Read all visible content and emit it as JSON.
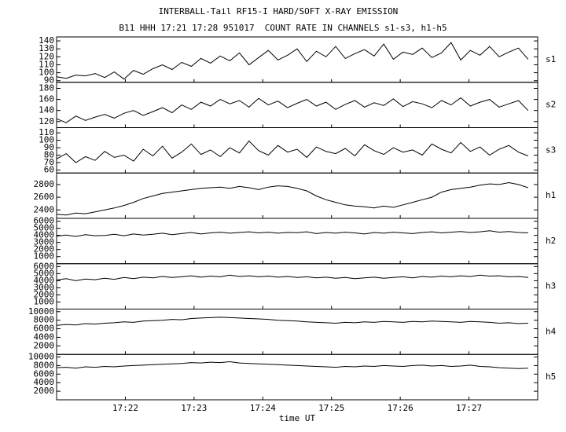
{
  "chart_data": {
    "type": "line",
    "title": "INTERBALL-Tail RF15-I HARD/SOFT X-RAY EMISSION",
    "subtitle": "B11 HHH 17:21 17:28 951017  COUNT RATE IN CHANNELS s1-s3, h1-h5",
    "xlabel": "time UT",
    "xlim": [
      1041,
      1048
    ],
    "xticks": [
      {
        "value": 1042,
        "label": "17:22"
      },
      {
        "value": 1043,
        "label": "17:23"
      },
      {
        "value": 1044,
        "label": "17:24"
      },
      {
        "value": 1045,
        "label": "17:25"
      },
      {
        "value": 1046,
        "label": "17:26"
      },
      {
        "value": 1047,
        "label": "17:27"
      }
    ],
    "color": "#000000",
    "x": [
      1041,
      1041.14,
      1041.28,
      1041.42,
      1041.56,
      1041.7,
      1041.84,
      1041.98,
      1042.12,
      1042.26,
      1042.4,
      1042.54,
      1042.68,
      1042.82,
      1042.96,
      1043.1,
      1043.24,
      1043.38,
      1043.52,
      1043.66,
      1043.8,
      1043.94,
      1044.08,
      1044.22,
      1044.36,
      1044.5,
      1044.64,
      1044.78,
      1044.92,
      1045.06,
      1045.2,
      1045.34,
      1045.48,
      1045.62,
      1045.76,
      1045.9,
      1046.04,
      1046.18,
      1046.32,
      1046.46,
      1046.6,
      1046.74,
      1046.88,
      1047.02,
      1047.16,
      1047.3,
      1047.44,
      1047.58,
      1047.72,
      1047.86
    ],
    "panels": [
      {
        "name": "s1",
        "ylim": [
          88,
          145
        ],
        "yticks": [
          90,
          100,
          110,
          120,
          130,
          140
        ],
        "values": [
          95,
          93,
          97,
          96,
          99,
          94,
          101,
          92,
          103,
          98,
          105,
          110,
          104,
          113,
          108,
          118,
          112,
          121,
          115,
          125,
          110,
          119,
          128,
          116,
          122,
          130,
          114,
          127,
          120,
          133,
          118,
          124,
          129,
          121,
          136,
          117,
          126,
          123,
          131,
          119,
          125,
          138,
          116,
          128,
          122,
          133,
          120,
          126,
          131,
          117
        ]
      },
      {
        "name": "s2",
        "ylim": [
          109,
          191
        ],
        "yticks": [
          120,
          140,
          160,
          180
        ],
        "values": [
          125,
          118,
          130,
          122,
          128,
          133,
          126,
          135,
          140,
          131,
          138,
          145,
          136,
          150,
          142,
          155,
          148,
          160,
          152,
          158,
          146,
          162,
          150,
          157,
          145,
          153,
          160,
          148,
          155,
          142,
          151,
          158,
          146,
          154,
          149,
          161,
          147,
          156,
          152,
          145,
          158,
          150,
          163,
          148,
          155,
          160,
          146,
          152,
          158,
          140
        ]
      },
      {
        "name": "s3",
        "ylim": [
          56,
          117
        ],
        "yticks": [
          60,
          70,
          80,
          90,
          100,
          110
        ],
        "values": [
          75,
          82,
          70,
          78,
          73,
          85,
          77,
          80,
          72,
          88,
          79,
          92,
          76,
          84,
          95,
          81,
          87,
          78,
          90,
          83,
          99,
          86,
          80,
          93,
          84,
          88,
          77,
          91,
          85,
          82,
          89,
          79,
          94,
          86,
          81,
          90,
          84,
          87,
          80,
          95,
          88,
          83,
          97,
          85,
          91,
          80,
          88,
          93,
          84,
          79
        ]
      },
      {
        "name": "h1",
        "ylim": [
          2267,
          2982
        ],
        "yticks": [
          2400,
          2600,
          2800
        ],
        "values": [
          2330,
          2320,
          2350,
          2340,
          2370,
          2400,
          2430,
          2470,
          2520,
          2580,
          2620,
          2660,
          2680,
          2700,
          2720,
          2740,
          2750,
          2760,
          2740,
          2770,
          2750,
          2720,
          2760,
          2780,
          2770,
          2740,
          2700,
          2620,
          2560,
          2520,
          2480,
          2460,
          2450,
          2430,
          2460,
          2440,
          2480,
          2520,
          2560,
          2600,
          2680,
          2720,
          2740,
          2760,
          2790,
          2810,
          2800,
          2830,
          2800,
          2750
        ]
      },
      {
        "name": "h2",
        "ylim": [
          0,
          6400
        ],
        "yticks": [
          1000,
          2000,
          3000,
          4000,
          5000,
          6000
        ],
        "values": [
          3900,
          4050,
          3850,
          4100,
          3950,
          4000,
          4150,
          3950,
          4200,
          4050,
          4150,
          4300,
          4100,
          4250,
          4400,
          4200,
          4350,
          4450,
          4300,
          4400,
          4500,
          4350,
          4450,
          4300,
          4420,
          4380,
          4500,
          4250,
          4400,
          4300,
          4450,
          4350,
          4200,
          4400,
          4300,
          4450,
          4350,
          4250,
          4400,
          4500,
          4350,
          4450,
          4550,
          4400,
          4500,
          4650,
          4450,
          4550,
          4400,
          4350
        ]
      },
      {
        "name": "h3",
        "ylim": [
          0,
          6400
        ],
        "yticks": [
          1000,
          2000,
          3000,
          4000,
          5000,
          6000
        ],
        "values": [
          4100,
          4300,
          4000,
          4250,
          4150,
          4350,
          4200,
          4450,
          4300,
          4500,
          4400,
          4600,
          4450,
          4550,
          4700,
          4500,
          4650,
          4550,
          4800,
          4600,
          4700,
          4550,
          4650,
          4500,
          4600,
          4450,
          4550,
          4400,
          4500,
          4350,
          4450,
          4300,
          4400,
          4500,
          4350,
          4450,
          4550,
          4400,
          4600,
          4500,
          4650,
          4550,
          4700,
          4600,
          4800,
          4650,
          4700,
          4550,
          4600,
          4450
        ]
      },
      {
        "name": "h4",
        "ylim": [
          0,
          10600
        ],
        "yticks": [
          2000,
          4000,
          6000,
          8000,
          10000
        ],
        "values": [
          6800,
          7000,
          6900,
          7200,
          7100,
          7300,
          7400,
          7600,
          7500,
          7800,
          7900,
          8000,
          8200,
          8100,
          8400,
          8500,
          8600,
          8700,
          8600,
          8500,
          8400,
          8300,
          8200,
          8000,
          7900,
          7800,
          7600,
          7500,
          7400,
          7300,
          7500,
          7400,
          7600,
          7500,
          7700,
          7600,
          7500,
          7700,
          7600,
          7800,
          7700,
          7600,
          7500,
          7700,
          7600,
          7500,
          7300,
          7400,
          7200,
          7300
        ]
      },
      {
        "name": "h5",
        "ylim": [
          0,
          10600
        ],
        "yticks": [
          2000,
          4000,
          6000,
          8000,
          10000
        ],
        "values": [
          7500,
          7600,
          7400,
          7700,
          7600,
          7800,
          7700,
          7900,
          8000,
          8100,
          8200,
          8300,
          8400,
          8500,
          8700,
          8600,
          8800,
          8700,
          8900,
          8600,
          8500,
          8400,
          8300,
          8200,
          8100,
          8000,
          7900,
          7800,
          7700,
          7600,
          7800,
          7700,
          7900,
          7800,
          8000,
          7900,
          7800,
          8000,
          8100,
          7900,
          8000,
          7800,
          7900,
          8100,
          7800,
          7700,
          7500,
          7400,
          7300,
          7400
        ]
      }
    ]
  }
}
